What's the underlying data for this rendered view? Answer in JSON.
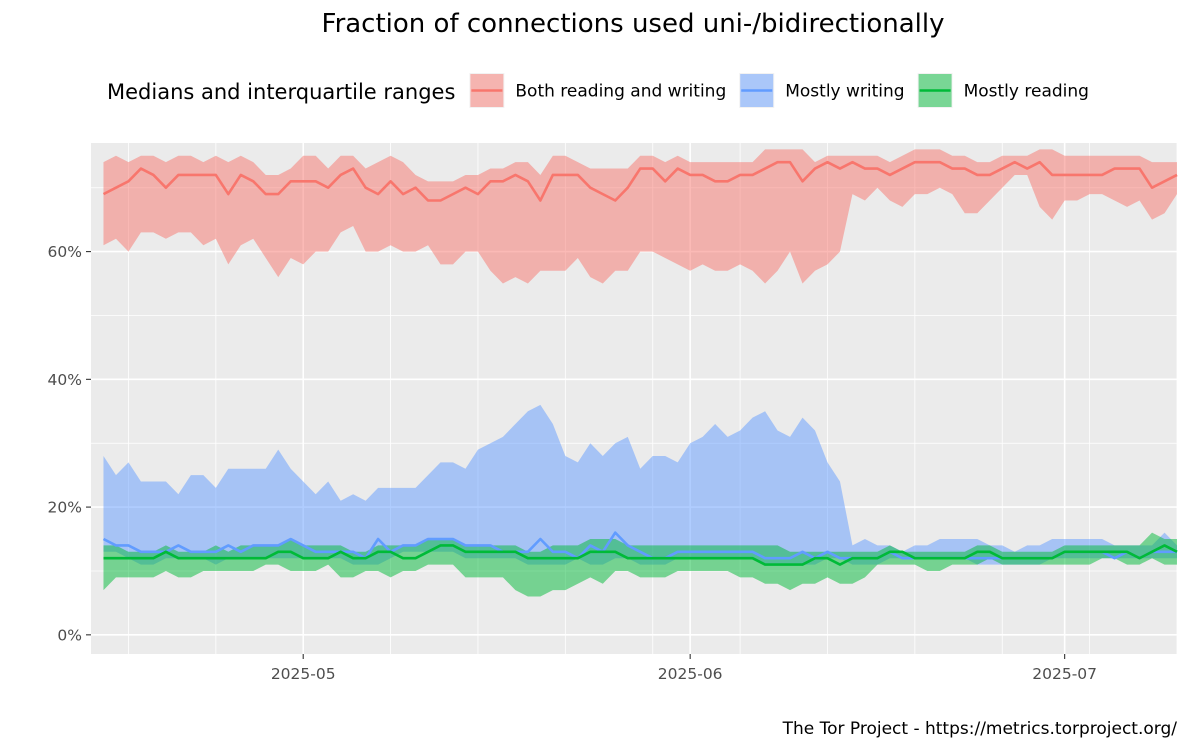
{
  "chart_data": {
    "type": "area",
    "title": "Fraction of connections used uni-/bidirectionally",
    "caption": "The Tor Project - https://metrics.torproject.org/",
    "legend": {
      "title": "Medians and interquartile ranges",
      "position": "top"
    },
    "xlabel": "",
    "ylabel": "",
    "x_range": [
      "2025-04-14",
      "2025-07-10"
    ],
    "ylim": [
      -3,
      77
    ],
    "y_ticks": [
      0,
      20,
      40,
      60
    ],
    "y_tick_labels": [
      "0%",
      "20%",
      "40%",
      "60%"
    ],
    "x_ticks": [
      "2025-05-01",
      "2025-06-01",
      "2025-07-01"
    ],
    "x_tick_labels": [
      "2025-05",
      "2025-06",
      "2025-07"
    ],
    "grid": true,
    "series": [
      {
        "name": "Both reading and writing",
        "color": "#F8766D",
        "segments": [
          {
            "start": "2025-04-15",
            "median": [
              69,
              70,
              71,
              73,
              72,
              70,
              72,
              72,
              72,
              72,
              69,
              72,
              71,
              69,
              69,
              71,
              71,
              71,
              70,
              72,
              73,
              70,
              69,
              71,
              69,
              70,
              68,
              68,
              69,
              70,
              69,
              71,
              71,
              72,
              71,
              68,
              72,
              72,
              72,
              70,
              69,
              68,
              70,
              73,
              73,
              71,
              73,
              72,
              72,
              71,
              71,
              72,
              72,
              73,
              74,
              74,
              71,
              73,
              74,
              73,
              74,
              73,
              73,
              72,
              73,
              74,
              74,
              74,
              73,
              73,
              72,
              72,
              73,
              74,
              73,
              74,
              72,
              72,
              72,
              72,
              72,
              73,
              73,
              73,
              70,
              71,
              72
            ],
            "q1": [
              61,
              62,
              60,
              63,
              63,
              62,
              63,
              63,
              61,
              62,
              58,
              61,
              62,
              59,
              56,
              59,
              58,
              60,
              60,
              63,
              64,
              60,
              60,
              61,
              60,
              60,
              61,
              58,
              58,
              60,
              60,
              57,
              55,
              56,
              55,
              57,
              57,
              57,
              59,
              56,
              55,
              57,
              57,
              60,
              60,
              59,
              58,
              57,
              58,
              57,
              57,
              58,
              57,
              55,
              57,
              60,
              55,
              57,
              58,
              60,
              69,
              68,
              70,
              68,
              67,
              69,
              69,
              70,
              69,
              66,
              66,
              68,
              70,
              72,
              72,
              67,
              65,
              68,
              68,
              69,
              69,
              68,
              67,
              68,
              65,
              66,
              69
            ],
            "q3": [
              74,
              75,
              74,
              75,
              75,
              74,
              75,
              75,
              74,
              75,
              74,
              75,
              74,
              72,
              72,
              73,
              75,
              75,
              73,
              75,
              75,
              73,
              74,
              75,
              74,
              72,
              71,
              71,
              71,
              72,
              72,
              73,
              73,
              74,
              74,
              72,
              75,
              75,
              74,
              73,
              73,
              73,
              73,
              75,
              75,
              74,
              75,
              74,
              74,
              74,
              74,
              74,
              74,
              76,
              76,
              76,
              76,
              74,
              75,
              75,
              75,
              75,
              75,
              74,
              75,
              76,
              76,
              76,
              75,
              75,
              74,
              74,
              75,
              75,
              75,
              76,
              76,
              75,
              75,
              75,
              75,
              75,
              75,
              75,
              74,
              74,
              74
            ]
          }
        ]
      },
      {
        "name": "Mostly writing",
        "color": "#619CFF",
        "segments": [
          {
            "start": "2025-04-15",
            "median": [
              15,
              14,
              14,
              13,
              13,
              13,
              14,
              13,
              13,
              13,
              14,
              13,
              14,
              14,
              14,
              15,
              14,
              13,
              13,
              13,
              13,
              12,
              15,
              13,
              14,
              14,
              15,
              15,
              15,
              14,
              14,
              14,
              13,
              13,
              13,
              15,
              13,
              13,
              12,
              14,
              13,
              16,
              14,
              13,
              12,
              12,
              13,
              13,
              13,
              13,
              13,
              13,
              13,
              12,
              12,
              12,
              13,
              12,
              13,
              12,
              12,
              12,
              12,
              13,
              12,
              12,
              12,
              12,
              12,
              12,
              12,
              12,
              12,
              12,
              12,
              12,
              12,
              13,
              13,
              13,
              13,
              12,
              13,
              12,
              13,
              13,
              13
            ],
            "q1": [
              13,
              13,
              12,
              11,
              11,
              12,
              12,
              12,
              12,
              11,
              12,
              12,
              12,
              12,
              12,
              12,
              12,
              12,
              12,
              12,
              11,
              11,
              11,
              12,
              13,
              13,
              13,
              13,
              13,
              12,
              12,
              12,
              12,
              12,
              11,
              11,
              11,
              11,
              12,
              11,
              11,
              12,
              12,
              11,
              11,
              11,
              12,
              12,
              12,
              12,
              12,
              12,
              12,
              11,
              11,
              11,
              11,
              11,
              12,
              12,
              11,
              11,
              11,
              12,
              12,
              12,
              12,
              12,
              12,
              12,
              11,
              11,
              11,
              11,
              11,
              11,
              12,
              12,
              12,
              12,
              12,
              12,
              12,
              12,
              12,
              12,
              12
            ],
            "q3": [
              28,
              25,
              27,
              24,
              24,
              24,
              22,
              25,
              25,
              23,
              26,
              26,
              26,
              26,
              29,
              26,
              24,
              22,
              24,
              21,
              22,
              21,
              23,
              23,
              23,
              23,
              25,
              27,
              27,
              26,
              29,
              30,
              31,
              33,
              35,
              36,
              33,
              28,
              27,
              30,
              28,
              30,
              31,
              26,
              28,
              28,
              27,
              30,
              31,
              33,
              31,
              32,
              34,
              35,
              32,
              31,
              34,
              32,
              27,
              24,
              14,
              15,
              14,
              14,
              13,
              14,
              14,
              15,
              15,
              15,
              15,
              14,
              14,
              13,
              14,
              14,
              15,
              15,
              15,
              15,
              15,
              14,
              14,
              14,
              14,
              16,
              14
            ]
          }
        ]
      },
      {
        "name": "Mostly reading",
        "color": "#00BA38",
        "segments": [
          {
            "start": "2025-04-15",
            "median": [
              12,
              12,
              12,
              12,
              12,
              13,
              12,
              12,
              12,
              12,
              12,
              12,
              12,
              12,
              13,
              13,
              12,
              12,
              12,
              13,
              12,
              12,
              13,
              13,
              12,
              12,
              13,
              14,
              14,
              13,
              13,
              13,
              13,
              13,
              12,
              12,
              12,
              12,
              12,
              13,
              13,
              13,
              12,
              12,
              12,
              12,
              12,
              12,
              12,
              12,
              12,
              12,
              12,
              11,
              11,
              11,
              11,
              12,
              12,
              11,
              12,
              12,
              12,
              13,
              13,
              12,
              12,
              12,
              12,
              12,
              13,
              13,
              12,
              12,
              12,
              12,
              12,
              13,
              13,
              13,
              13,
              13,
              13,
              12,
              13,
              14,
              13
            ],
            "q1": [
              7,
              9,
              9,
              9,
              9,
              10,
              9,
              9,
              10,
              10,
              10,
              10,
              10,
              11,
              11,
              10,
              10,
              10,
              11,
              9,
              9,
              10,
              10,
              9,
              10,
              10,
              11,
              11,
              11,
              9,
              9,
              9,
              9,
              7,
              6,
              6,
              7,
              7,
              8,
              9,
              8,
              10,
              10,
              9,
              9,
              9,
              10,
              10,
              10,
              10,
              10,
              9,
              9,
              8,
              8,
              7,
              8,
              8,
              9,
              8,
              8,
              9,
              11,
              11,
              11,
              11,
              10,
              10,
              11,
              11,
              11,
              12,
              11,
              11,
              11,
              11,
              11,
              11,
              11,
              11,
              12,
              12,
              11,
              11,
              12,
              11,
              11
            ],
            "q3": [
              14,
              14,
              13,
              13,
              13,
              14,
              13,
              13,
              13,
              14,
              13,
              14,
              14,
              14,
              14,
              15,
              14,
              14,
              14,
              14,
              13,
              13,
              14,
              14,
              14,
              14,
              15,
              15,
              15,
              14,
              14,
              14,
              14,
              14,
              13,
              13,
              14,
              14,
              14,
              15,
              15,
              15,
              14,
              14,
              14,
              14,
              14,
              14,
              14,
              14,
              14,
              14,
              14,
              14,
              14,
              13,
              13,
              13,
              13,
              13,
              13,
              13,
              13,
              14,
              13,
              13,
              13,
              13,
              13,
              13,
              14,
              14,
              13,
              13,
              13,
              13,
              13,
              14,
              14,
              14,
              14,
              14,
              14,
              14,
              16,
              15,
              15
            ]
          }
        ]
      }
    ]
  }
}
